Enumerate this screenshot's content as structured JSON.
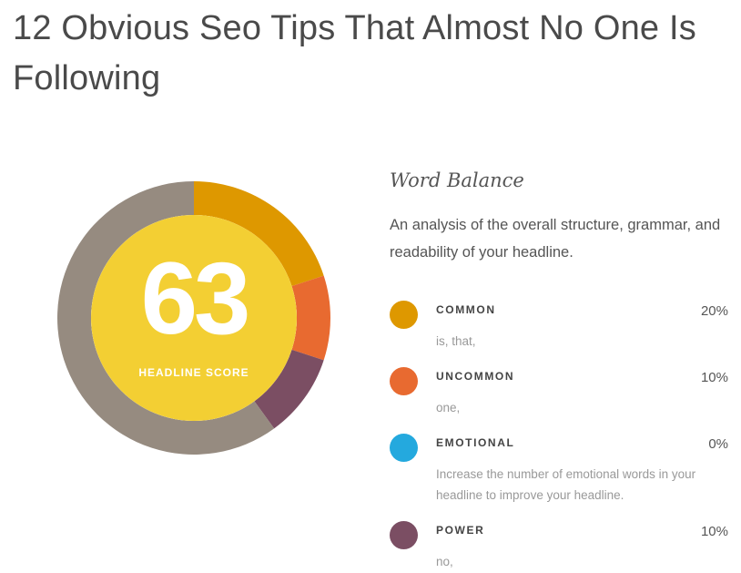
{
  "headline": "12 Obvious Seo Tips That Almost No One Is Following",
  "score": {
    "value": "63",
    "label": "HEADLINE SCORE",
    "fill_color": "#f3cf33",
    "ring_rest_color": "#968b80"
  },
  "word_balance": {
    "title": "Word Balance",
    "description": "An analysis of the overall structure, grammar, and readability of your headline.",
    "items": [
      {
        "name": "COMMON",
        "percent": "20%",
        "value": 20,
        "words": "is, that,",
        "color": "#de9800"
      },
      {
        "name": "UNCOMMON",
        "percent": "10%",
        "value": 10,
        "words": "one,",
        "color": "#e86a30"
      },
      {
        "name": "EMOTIONAL",
        "percent": "0%",
        "value": 0,
        "words": "Increase the number of emotional words in your headline to improve your headline.",
        "color": "#24a9de"
      },
      {
        "name": "POWER",
        "percent": "10%",
        "value": 10,
        "words": "no,",
        "color": "#7b4e63"
      }
    ]
  }
}
